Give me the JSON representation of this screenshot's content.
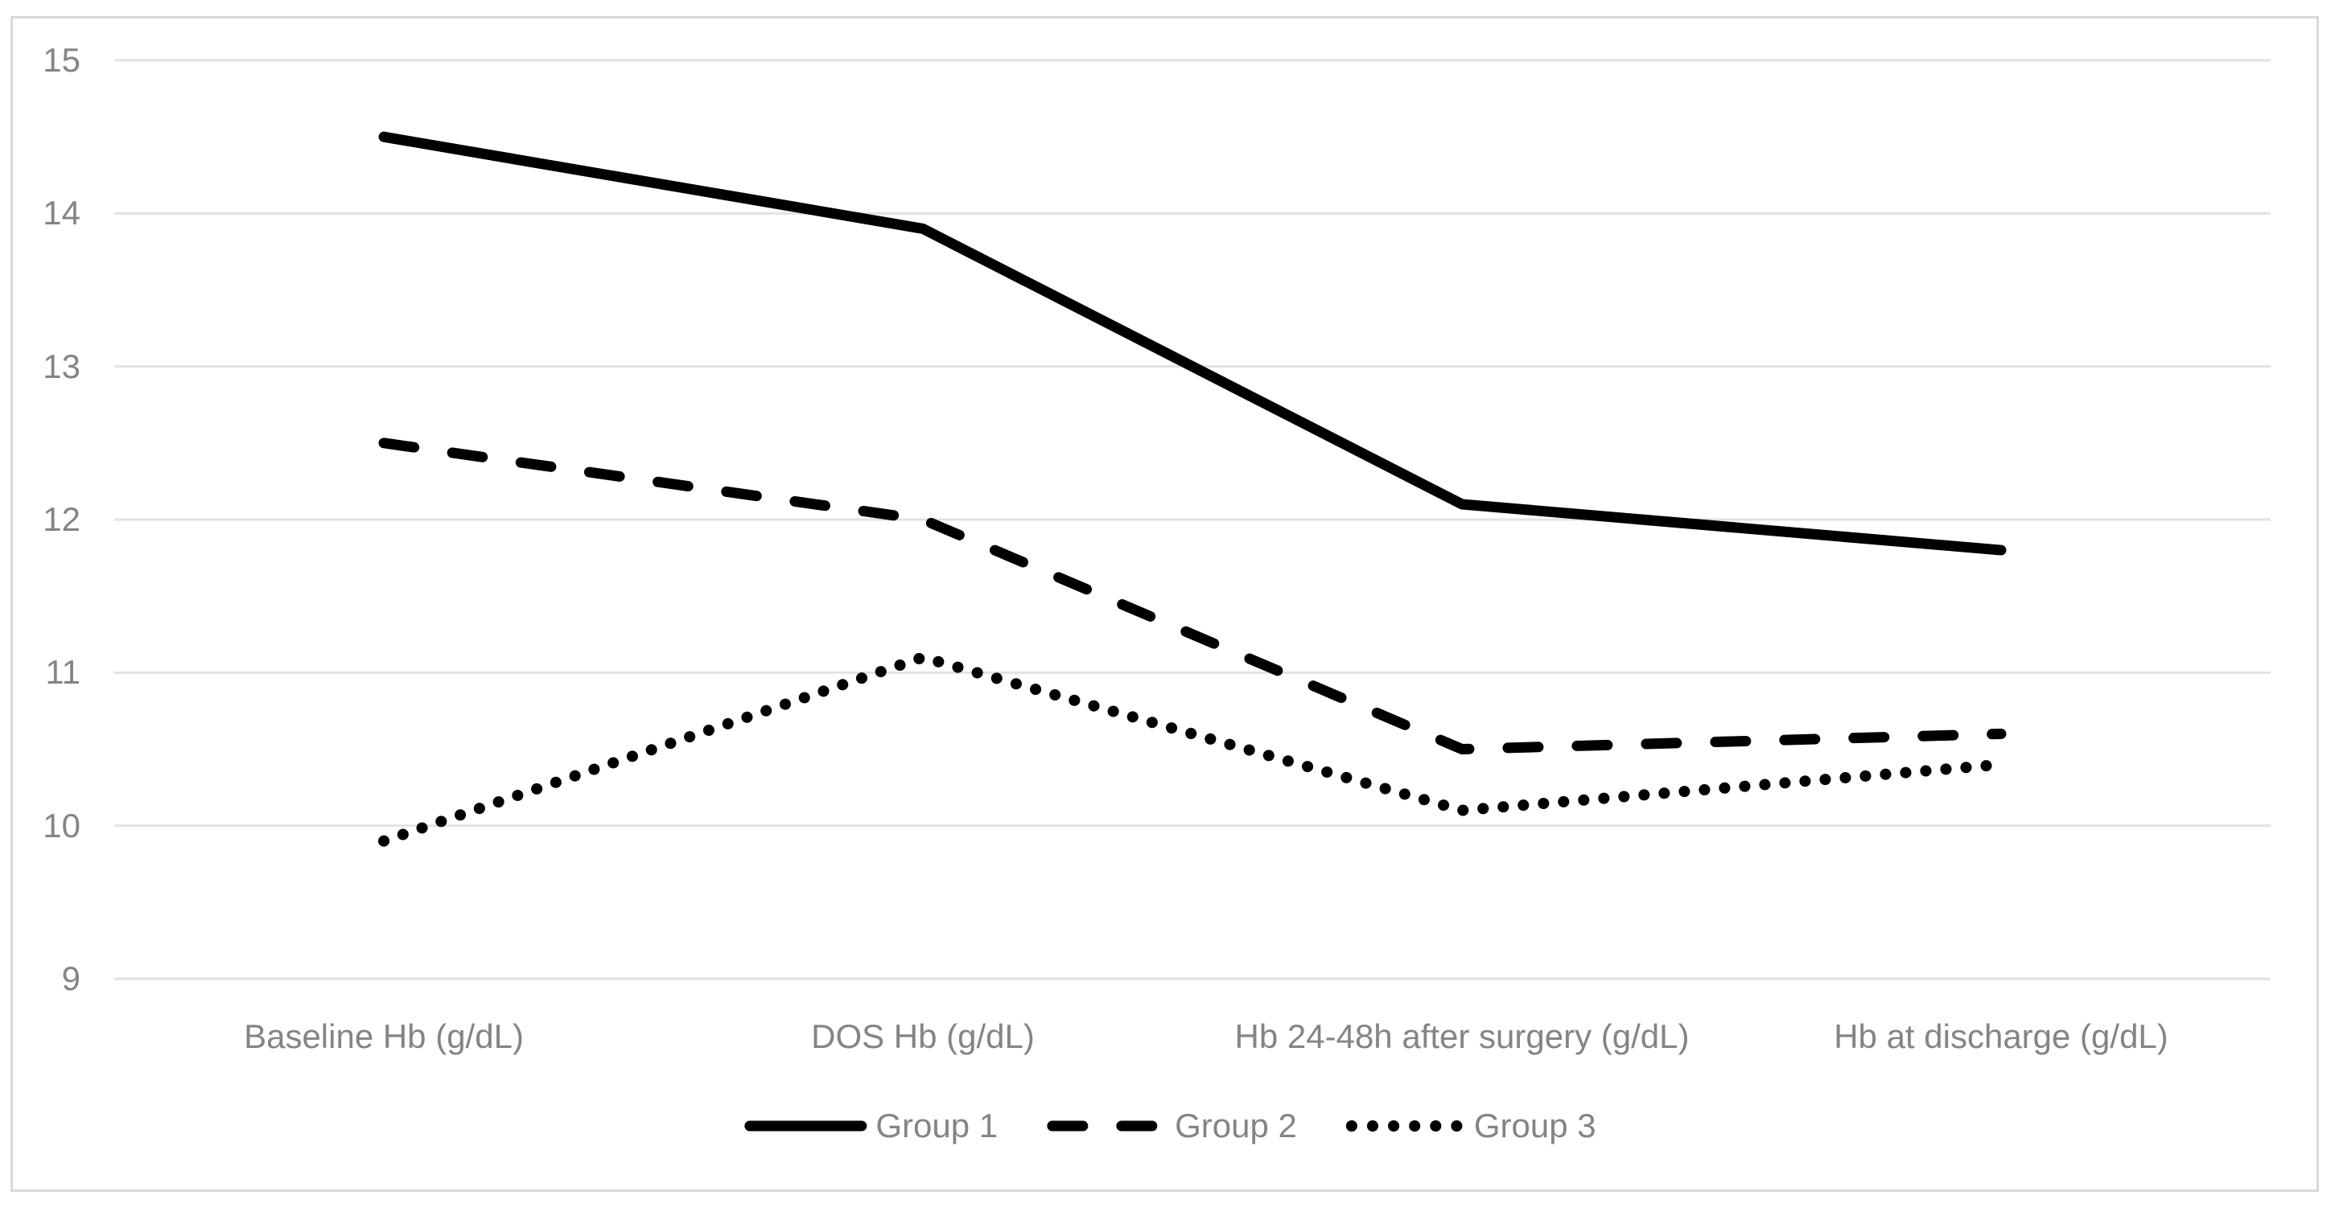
{
  "chart_data": {
    "type": "line",
    "title": "",
    "categories": [
      "Baseline Hb (g/dL)",
      "DOS Hb (g/dL)",
      "Hb 24-48h after surgery (g/dL)",
      "Hb at discharge (g/dL)"
    ],
    "series": [
      {
        "name": "Group 1",
        "line_style": "solid",
        "color": "#000000",
        "values": [
          14.5,
          13.9,
          12.1,
          11.8
        ]
      },
      {
        "name": "Group 2",
        "line_style": "dashed",
        "color": "#000000",
        "values": [
          12.5,
          12.0,
          10.5,
          10.6
        ]
      },
      {
        "name": "Group 3",
        "line_style": "dotted",
        "color": "#000000",
        "values": [
          9.9,
          11.1,
          10.1,
          10.4
        ]
      }
    ],
    "xlabel": "",
    "ylabel": "",
    "ylim": [
      9,
      15
    ],
    "yticks": [
      15,
      14,
      13,
      12,
      11,
      10,
      9
    ],
    "grid": "horizontal",
    "legend_position": "bottom"
  },
  "colors": {
    "background": "#ffffff",
    "frame_border": "#d9d9d9",
    "gridline": "#e2e2e2",
    "axis_label": "#848484",
    "series_line": "#000000"
  }
}
